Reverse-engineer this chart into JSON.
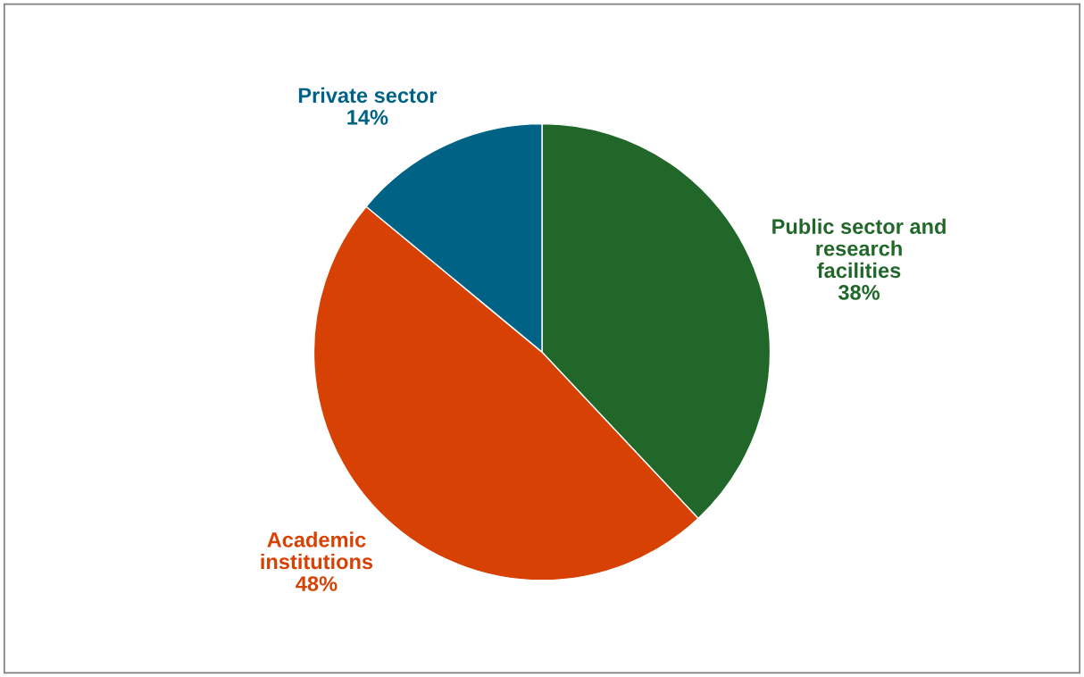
{
  "chart_data": {
    "type": "pie",
    "categories": [
      "Public sector and\nresearch\nfacilities",
      "Academic\ninstitutions",
      "Private sector"
    ],
    "values": [
      38,
      48,
      14
    ],
    "value_labels": [
      "38%",
      "48%",
      "14%"
    ],
    "colors": [
      "#216729",
      "#d84104",
      "#006386"
    ],
    "legend": false
  }
}
